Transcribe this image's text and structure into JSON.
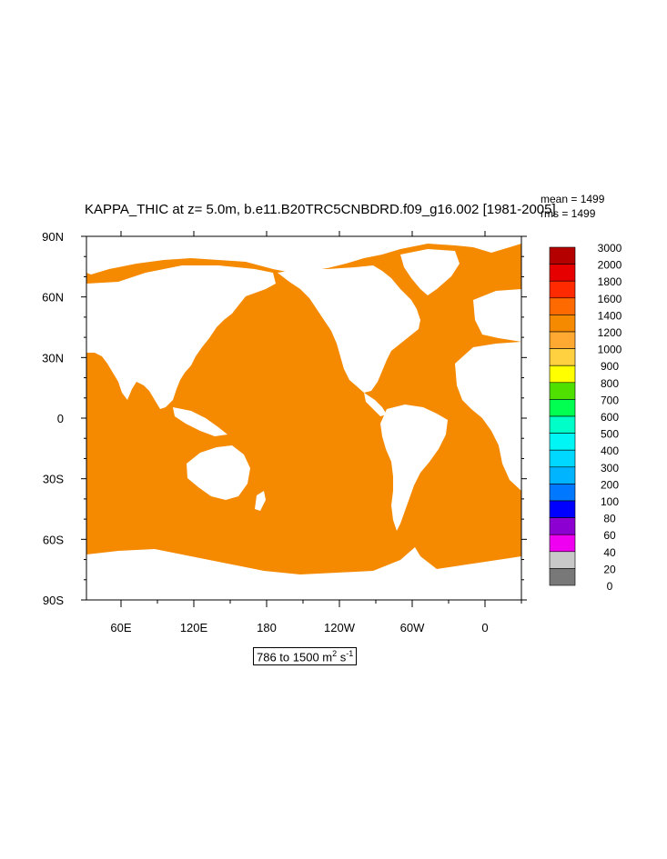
{
  "plot": {
    "title": "KAPPA_THIC at z=   5.0m, b.e11.B20TRC5CNBDRD.f09_g16.002 [1981-2005]",
    "mean_text": "mean = 1499",
    "rms_text": "rms = 1499",
    "range_prefix": "786 to 1500 m",
    "range_exp1": "2",
    "range_mid": " s",
    "range_exp2": "-1"
  },
  "map": {
    "lat_labels": [
      "90N",
      "60N",
      "30N",
      "0",
      "30S",
      "60S",
      "90S"
    ],
    "lon_labels": [
      "60E",
      "120E",
      "180",
      "120W",
      "60W",
      "0"
    ],
    "ocean_color": "#f58a00",
    "land_color": "#ffffff"
  },
  "colorbar": {
    "labels": [
      "3000",
      "2000",
      "1800",
      "1600",
      "1400",
      "1200",
      "1000",
      "900",
      "800",
      "700",
      "600",
      "500",
      "400",
      "300",
      "200",
      "100",
      "80",
      "60",
      "40",
      "20",
      "0"
    ],
    "colors": [
      "#b50000",
      "#e60000",
      "#ff2a00",
      "#ff6a00",
      "#f58a00",
      "#ffa832",
      "#ffd040",
      "#ffff00",
      "#50e000",
      "#00ff50",
      "#00ffc8",
      "#00f5f5",
      "#00d8ff",
      "#00b4ff",
      "#0078ff",
      "#0000ff",
      "#8c00d2",
      "#f000f0",
      "#c8c8c8",
      "#787878"
    ]
  }
}
